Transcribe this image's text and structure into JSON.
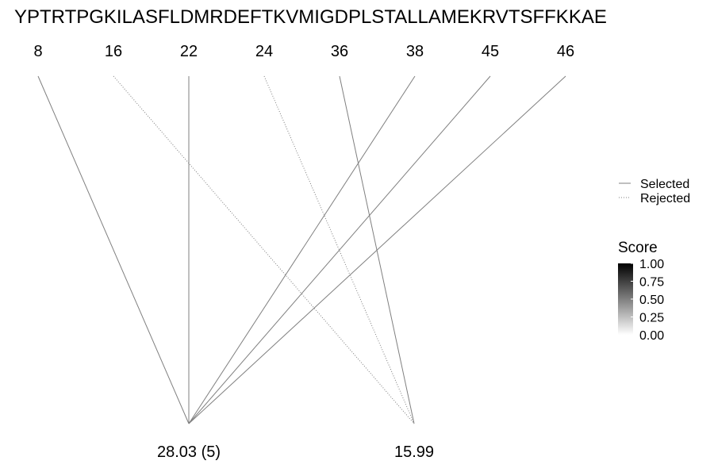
{
  "chart_data": {
    "type": "line",
    "sequence": "YPTRTPGKILASFLDMRDEFTKVMIGDPLSTALLAMEKRVTSFFKKAE",
    "positions": [
      "8",
      "16",
      "22",
      "24",
      "36",
      "38",
      "45",
      "46"
    ],
    "bottom_nodes": [
      {
        "id": "n1",
        "label": "28.03 (5)"
      },
      {
        "id": "n2",
        "label": "15.99"
      }
    ],
    "links": [
      {
        "from": "8",
        "to": "n1",
        "status": "Selected"
      },
      {
        "from": "16",
        "to": "n2",
        "status": "Rejected"
      },
      {
        "from": "22",
        "to": "n1",
        "status": "Selected"
      },
      {
        "from": "24",
        "to": "n2",
        "status": "Rejected"
      },
      {
        "from": "36",
        "to": "n2",
        "status": "Selected"
      },
      {
        "from": "38",
        "to": "n1",
        "status": "Selected"
      },
      {
        "from": "45",
        "to": "n1",
        "status": "Selected"
      },
      {
        "from": "46",
        "to": "n1",
        "status": "Selected"
      }
    ],
    "legend": [
      {
        "label": "Selected",
        "linetype": "solid"
      },
      {
        "label": "Rejected",
        "linetype": "dotted"
      }
    ],
    "score_legend": {
      "title": "Score",
      "ticks": [
        "1.00",
        "0.75",
        "0.50",
        "0.25",
        "0.00"
      ],
      "low_color": "#ffffff",
      "high_color": "#000000"
    },
    "line_color": "#7f7f7f"
  }
}
